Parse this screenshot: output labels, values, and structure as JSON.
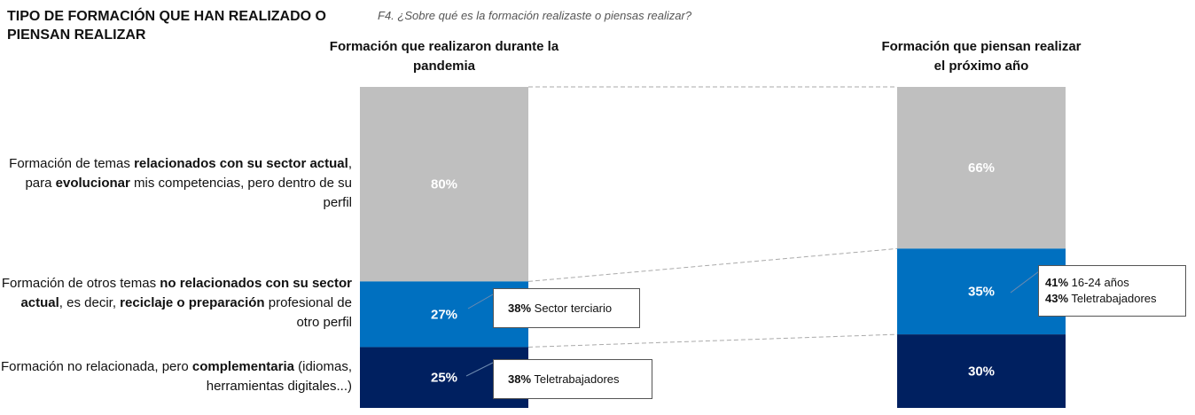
{
  "title": "TIPO DE FORMACIÓN QUE HAN REALIZADO O PIENSAN REALIZAR",
  "question": "F4. ¿Sobre qué es la formación realizaste o piensas realizar?",
  "colors": {
    "gray": "#bfbfbf",
    "blue": "#0070c0",
    "navy": "#002060"
  },
  "chart_data": {
    "type": "bar",
    "stacked": true,
    "categories": [
      "Formación que realizaron durante la pandemia",
      "Formación que piensan realizar el próximo año"
    ],
    "series": [
      {
        "name": "Formación de temas relacionados con su sector actual, para evolucionar mis competencias, pero dentro de su perfil",
        "values": [
          80,
          66
        ],
        "labels": [
          "80%",
          "66%"
        ]
      },
      {
        "name": "Formación de otros temas no relacionados con su sector actual, es decir, reciclaje o preparación profesional de otro perfil",
        "values": [
          27,
          35
        ],
        "labels": [
          "27%",
          "35%"
        ]
      },
      {
        "name": "Formación no relacionada, pero complementaria (idiomas, herramientas digitales...)",
        "values": [
          25,
          30
        ],
        "labels": [
          "25%",
          "30%"
        ]
      }
    ],
    "series_rich": [
      [
        {
          "t": "Formación de temas ",
          "b": false
        },
        {
          "t": "relacionados con su sector actual",
          "b": true
        },
        {
          "t": ", para ",
          "b": false
        },
        {
          "t": "evolucionar",
          "b": true
        },
        {
          "t": " mis competencias, pero dentro de su perfil",
          "b": false
        }
      ],
      [
        {
          "t": "Formación de otros temas ",
          "b": false
        },
        {
          "t": "no relacionados con su sector actual",
          "b": true
        },
        {
          "t": ", es decir, ",
          "b": false
        },
        {
          "t": "reciclaje o preparación",
          "b": true
        },
        {
          "t": " profesional de otro perfil",
          "b": false
        }
      ],
      [
        {
          "t": "Formación no relacionada, pero ",
          "b": false
        },
        {
          "t": "complementaria",
          "b": true
        },
        {
          "t": " (idiomas, herramientas digitales...)",
          "b": false
        }
      ]
    ],
    "annotations": [
      {
        "bold": "38%",
        "text": " Sector terciario"
      },
      {
        "bold": "38%",
        "text": " Teletrabajadores"
      },
      {
        "lines": [
          {
            "bold": "41%",
            "text": " 16-24 años"
          },
          {
            "bold": "43%",
            "text": " Teletrabajadores"
          }
        ]
      }
    ]
  }
}
